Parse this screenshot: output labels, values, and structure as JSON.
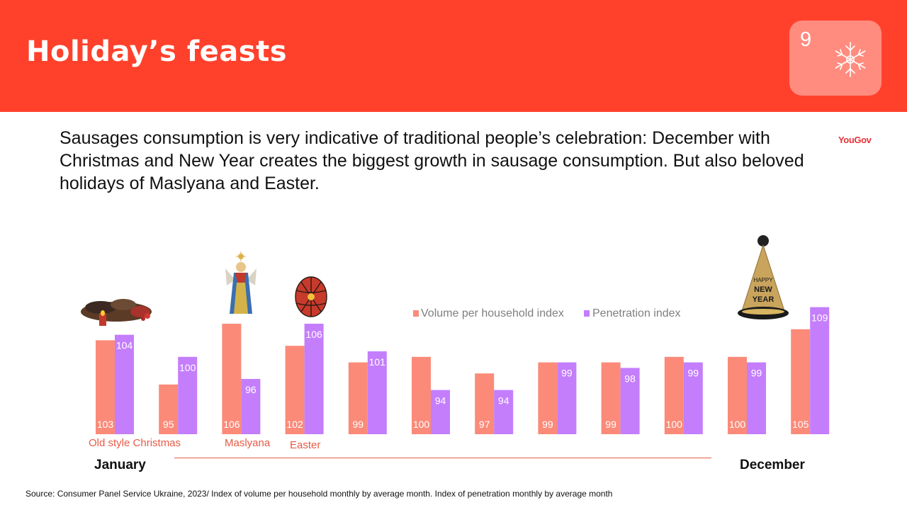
{
  "header": {
    "title": "Holiday’s feasts",
    "page_number": "9",
    "background_color": "#ff412c"
  },
  "intro_text": "Sausages consumption is very indicative of traditional people’s celebration: December with Christmas and New Year creates the biggest growth in sausage consumption. But also beloved holidays of Maslyana and Easter.",
  "brand_logo": "YouGov",
  "timeline": {
    "start_label": "January",
    "end_label": "December"
  },
  "holidays": [
    {
      "label": "Old style Christmas"
    },
    {
      "label": "Maslyana"
    },
    {
      "label": "Easter"
    }
  ],
  "source": "Source:  Consumer Panel Service Ukraine,  2023/ Index of volume per household monthly by average month. Index of penetration monthly by average month",
  "chart_data": {
    "type": "bar",
    "categories": [
      "",
      "",
      "",
      "",
      "",
      "",
      "",
      "",
      "",
      "",
      "",
      ""
    ],
    "series": [
      {
        "name": "Volume per household index",
        "color": "#fb8a79",
        "values": [
          103,
          95,
          106,
          102,
          99,
          100,
          97,
          99,
          99,
          100,
          100,
          105
        ]
      },
      {
        "name": "Penetration index",
        "color": "#c47efc",
        "values": [
          104,
          100,
          96,
          106,
          101,
          94,
          94,
          99,
          98,
          99,
          99,
          109
        ]
      }
    ],
    "legend_position": "top-right",
    "grid": false
  }
}
